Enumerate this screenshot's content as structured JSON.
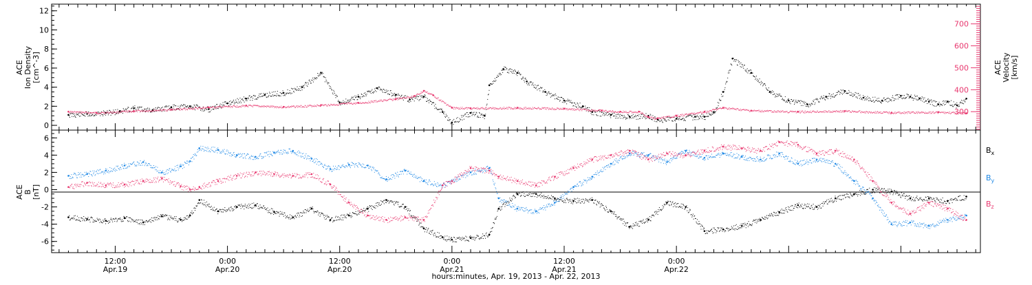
{
  "colors": {
    "density": "#000000",
    "velocity": "#e8386f",
    "bx": "#000000",
    "by": "#1e88e5",
    "bz": "#e8386f"
  },
  "chart_data": [
    {
      "type": "scatter",
      "panel": "top",
      "ylabel_lines": [
        "ACE",
        "Ion Density",
        "[cm^-3]"
      ],
      "ylabel_right_lines": [
        "ACE",
        "Velocity",
        "[km/s]"
      ],
      "yticks_left": [
        "0",
        "2",
        "4",
        "6",
        "8",
        "10",
        "12"
      ],
      "yticks_right": [
        "300",
        "400",
        "500",
        "600",
        "700"
      ],
      "ylim_left": [
        -0.5,
        12.7
      ],
      "ylim_right": [
        216,
        790
      ],
      "x_unit": "hours since Apr. 19, 2013 00:00",
      "xlim": [
        5.2,
        104.5
      ],
      "series": [
        {
          "key": "density",
          "x": [
            7,
            9,
            11,
            12.5,
            14,
            16,
            18,
            20,
            22,
            24,
            26,
            28,
            30,
            32,
            34,
            36,
            38,
            40,
            42,
            43.5,
            45,
            47,
            48,
            50,
            51.5,
            52,
            53.5,
            55,
            56,
            58,
            60,
            62,
            63,
            65,
            67,
            69,
            70,
            72,
            74,
            75,
            76,
            77,
            78,
            80,
            82,
            84,
            86,
            88,
            90,
            92,
            94,
            96,
            97,
            98,
            99,
            100,
            101,
            102,
            103
          ],
          "y": [
            1.1,
            1.2,
            1.3,
            1.5,
            1.8,
            1.6,
            1.9,
            2.0,
            1.7,
            2.3,
            2.8,
            3.2,
            3.4,
            4.0,
            5.5,
            2.4,
            3.0,
            3.9,
            3.2,
            2.7,
            3.0,
            1.4,
            0.3,
            1.3,
            1.0,
            4.2,
            5.9,
            5.5,
            4.6,
            3.5,
            2.6,
            2.0,
            1.4,
            1.1,
            0.9,
            1.0,
            0.6,
            0.7,
            0.9,
            0.9,
            1.4,
            3.5,
            7.0,
            5.5,
            3.5,
            2.6,
            2.2,
            3.0,
            3.6,
            2.9,
            2.6,
            3.1,
            3.0,
            2.8,
            2.5,
            2.2,
            2.5,
            2.1,
            2.8
          ]
        },
        {
          "key": "velocity",
          "x": [
            7,
            10,
            14,
            18,
            22,
            26,
            30,
            34,
            38,
            42,
            44,
            45,
            46,
            48,
            50,
            55,
            60,
            64,
            66,
            68,
            69,
            70,
            72,
            75,
            77,
            80,
            85,
            90,
            95,
            100,
            103
          ],
          "y": [
            300,
            295,
            303,
            310,
            320,
            328,
            322,
            330,
            340,
            358,
            372,
            395,
            375,
            318,
            316,
            318,
            314,
            305,
            300,
            300,
            275,
            270,
            282,
            300,
            318,
            305,
            300,
            303,
            296,
            298,
            293
          ]
        }
      ]
    },
    {
      "type": "scatter",
      "panel": "bottom",
      "ylabel_lines": [
        "ACE",
        "B",
        "[nT]"
      ],
      "yticks": [
        "-6",
        "-4",
        "-2",
        "0",
        "2",
        "4",
        "6"
      ],
      "ylim": [
        -7.3,
        6.9
      ],
      "x_unit": "hours since Apr. 19, 2013 00:00",
      "xlim": [
        5.2,
        104.5
      ],
      "legend": [
        "B",
        "B",
        "B"
      ],
      "legend_subscripts": [
        "x",
        "y",
        "z"
      ],
      "legend_placement": "right",
      "series": [
        {
          "key": "bx",
          "x": [
            7,
            9,
            11,
            13,
            15,
            17,
            19,
            20,
            21,
            23,
            25,
            27,
            29,
            31,
            33,
            35,
            37,
            39,
            41,
            43,
            45,
            47,
            48,
            50,
            52,
            53,
            55,
            57,
            59,
            61,
            63,
            65,
            67,
            69,
            71,
            73,
            75,
            77,
            79,
            81,
            83,
            85,
            87,
            89,
            91,
            93,
            95,
            97,
            99,
            101,
            103
          ],
          "y": [
            -3.2,
            -3.4,
            -3.6,
            -3.3,
            -3.8,
            -3.1,
            -3.5,
            -3.0,
            -1.2,
            -2.5,
            -2.0,
            -1.8,
            -2.6,
            -3.2,
            -2.2,
            -3.5,
            -3.0,
            -2.2,
            -1.2,
            -2.0,
            -4.5,
            -5.5,
            -5.8,
            -5.6,
            -5.2,
            -2.2,
            -0.5,
            -0.5,
            -1.0,
            -1.3,
            -1.2,
            -2.5,
            -4.3,
            -3.5,
            -1.5,
            -2.0,
            -4.8,
            -4.6,
            -4.2,
            -3.5,
            -2.6,
            -1.8,
            -2.0,
            -1.0,
            -0.5,
            0.0,
            -0.2,
            -1.0,
            -1.0,
            -1.3,
            -0.8
          ]
        },
        {
          "key": "by",
          "x": [
            7,
            9,
            11,
            13,
            15,
            17,
            19,
            20,
            21,
            23,
            25,
            27,
            29,
            31,
            33,
            35,
            37,
            39,
            41,
            43,
            45,
            47,
            48,
            50,
            52,
            53,
            55,
            57,
            59,
            61,
            63,
            65,
            67,
            69,
            71,
            73,
            75,
            77,
            79,
            81,
            83,
            85,
            87,
            89,
            91,
            93,
            95,
            97,
            99,
            101,
            103
          ],
          "y": [
            1.6,
            1.8,
            2.2,
            2.8,
            3.2,
            2.0,
            2.7,
            3.3,
            4.8,
            4.6,
            4.0,
            3.8,
            4.3,
            4.5,
            3.6,
            2.4,
            2.9,
            2.8,
            1.2,
            2.2,
            1.0,
            0.5,
            1.0,
            2.0,
            2.5,
            -1.0,
            -2.2,
            -2.5,
            -1.5,
            0.3,
            1.5,
            3.0,
            4.2,
            4.0,
            3.2,
            4.5,
            3.7,
            4.2,
            3.8,
            3.5,
            4.2,
            3.0,
            3.5,
            3.0,
            1.0,
            -1.0,
            -4.0,
            -3.8,
            -4.2,
            -3.5,
            -3.0
          ]
        },
        {
          "key": "bz",
          "x": [
            7,
            9,
            11,
            13,
            15,
            17,
            19,
            20,
            21,
            23,
            25,
            27,
            29,
            31,
            33,
            35,
            37,
            39,
            41,
            43,
            45,
            47,
            48,
            50,
            52,
            53,
            55,
            57,
            59,
            61,
            63,
            65,
            67,
            69,
            71,
            73,
            75,
            77,
            79,
            81,
            83,
            85,
            87,
            89,
            91,
            93,
            95,
            97,
            99,
            101,
            103
          ],
          "y": [
            0.3,
            0.8,
            0.5,
            0.6,
            1.0,
            1.3,
            0.4,
            0.0,
            0.3,
            1.0,
            1.6,
            2.0,
            1.8,
            1.6,
            1.8,
            0.6,
            -1.5,
            -3.0,
            -3.5,
            -3.2,
            -3.5,
            0.5,
            1.0,
            2.5,
            2.2,
            1.5,
            1.0,
            0.5,
            1.5,
            2.5,
            3.5,
            4.0,
            4.5,
            3.5,
            4.2,
            4.0,
            4.5,
            5.0,
            4.8,
            4.5,
            5.5,
            5.2,
            4.2,
            4.5,
            3.5,
            1.0,
            -1.5,
            -2.8,
            -1.5,
            -2.2,
            -3.5
          ]
        }
      ]
    }
  ],
  "x_axis": {
    "ticks": [
      {
        "time": "12:00",
        "date": "Apr.19"
      },
      {
        "time": "0:00",
        "date": "Apr.20"
      },
      {
        "time": "12:00",
        "date": "Apr.20"
      },
      {
        "time": "0:00",
        "date": "Apr.21"
      },
      {
        "time": "12:00",
        "date": "Apr.21"
      },
      {
        "time": "0:00",
        "date": "Apr.22"
      }
    ],
    "tick_hours": [
      12,
      24,
      36,
      48,
      60,
      72
    ],
    "label": "hours:minutes, Apr. 19, 2013 - Apr. 22, 2013"
  }
}
